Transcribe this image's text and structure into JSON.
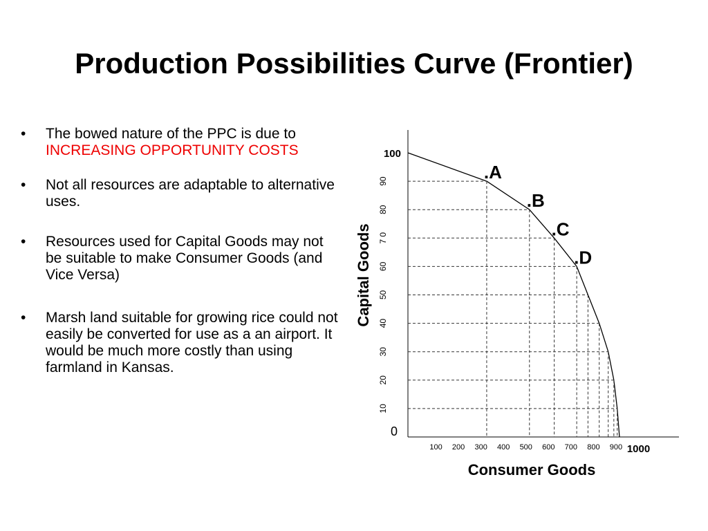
{
  "title": "Production Possibilities Curve (Frontier)",
  "bullets": [
    {
      "text": "The bowed nature of the PPC is due to ",
      "highlight": "INCREASING OPPORTUNITY COSTS"
    },
    {
      "text": "Not all resources are adaptable to alternative uses."
    },
    {
      "text": "Resources used for Capital Goods may not be suitable to make Consumer Goods (and Vice Versa)"
    },
    {
      "text": "Marsh land suitable for growing rice could not easily be converted for use as a an airport.  It would be much more costly than using farmland in Kansas."
    }
  ],
  "bullet_glyph": "•",
  "colors": {
    "highlight": "#ee0000",
    "text": "#000000"
  },
  "chart_data": {
    "type": "line",
    "xlabel": "Consumer Goods",
    "ylabel": "Capital Goods",
    "origin_label": "0",
    "x_ticks": [
      100,
      200,
      300,
      400,
      500,
      600,
      700,
      800,
      900,
      1000
    ],
    "x_tick_labels": [
      "100",
      "200",
      "300",
      "400",
      "500",
      "600",
      "700",
      "800",
      "900",
      "1000"
    ],
    "y_ticks": [
      10,
      20,
      30,
      40,
      50,
      60,
      70,
      80,
      90,
      100
    ],
    "y_tick_labels": [
      "10",
      "20",
      "30",
      "40",
      "50",
      "60",
      "7 0",
      "80",
      "90",
      "100"
    ],
    "xlim": [
      0,
      1100
    ],
    "ylim": [
      0,
      100
    ],
    "grid": "dashed drop lines from curve to axes",
    "series": [
      {
        "points": [
          [
            0,
            100
          ],
          [
            350,
            90
          ],
          [
            540,
            80
          ],
          [
            650,
            70
          ],
          [
            750,
            60
          ],
          [
            800,
            50
          ],
          [
            850,
            40
          ],
          [
            890,
            30
          ],
          [
            915,
            20
          ],
          [
            930,
            10
          ],
          [
            940,
            0
          ]
        ]
      }
    ],
    "annotations": [
      {
        "label": ".A",
        "x": 350,
        "y": 90
      },
      {
        "label": ".B",
        "x": 540,
        "y": 80
      },
      {
        "label": ".C",
        "x": 650,
        "y": 70
      },
      {
        "label": ".D",
        "x": 750,
        "y": 60
      }
    ]
  }
}
